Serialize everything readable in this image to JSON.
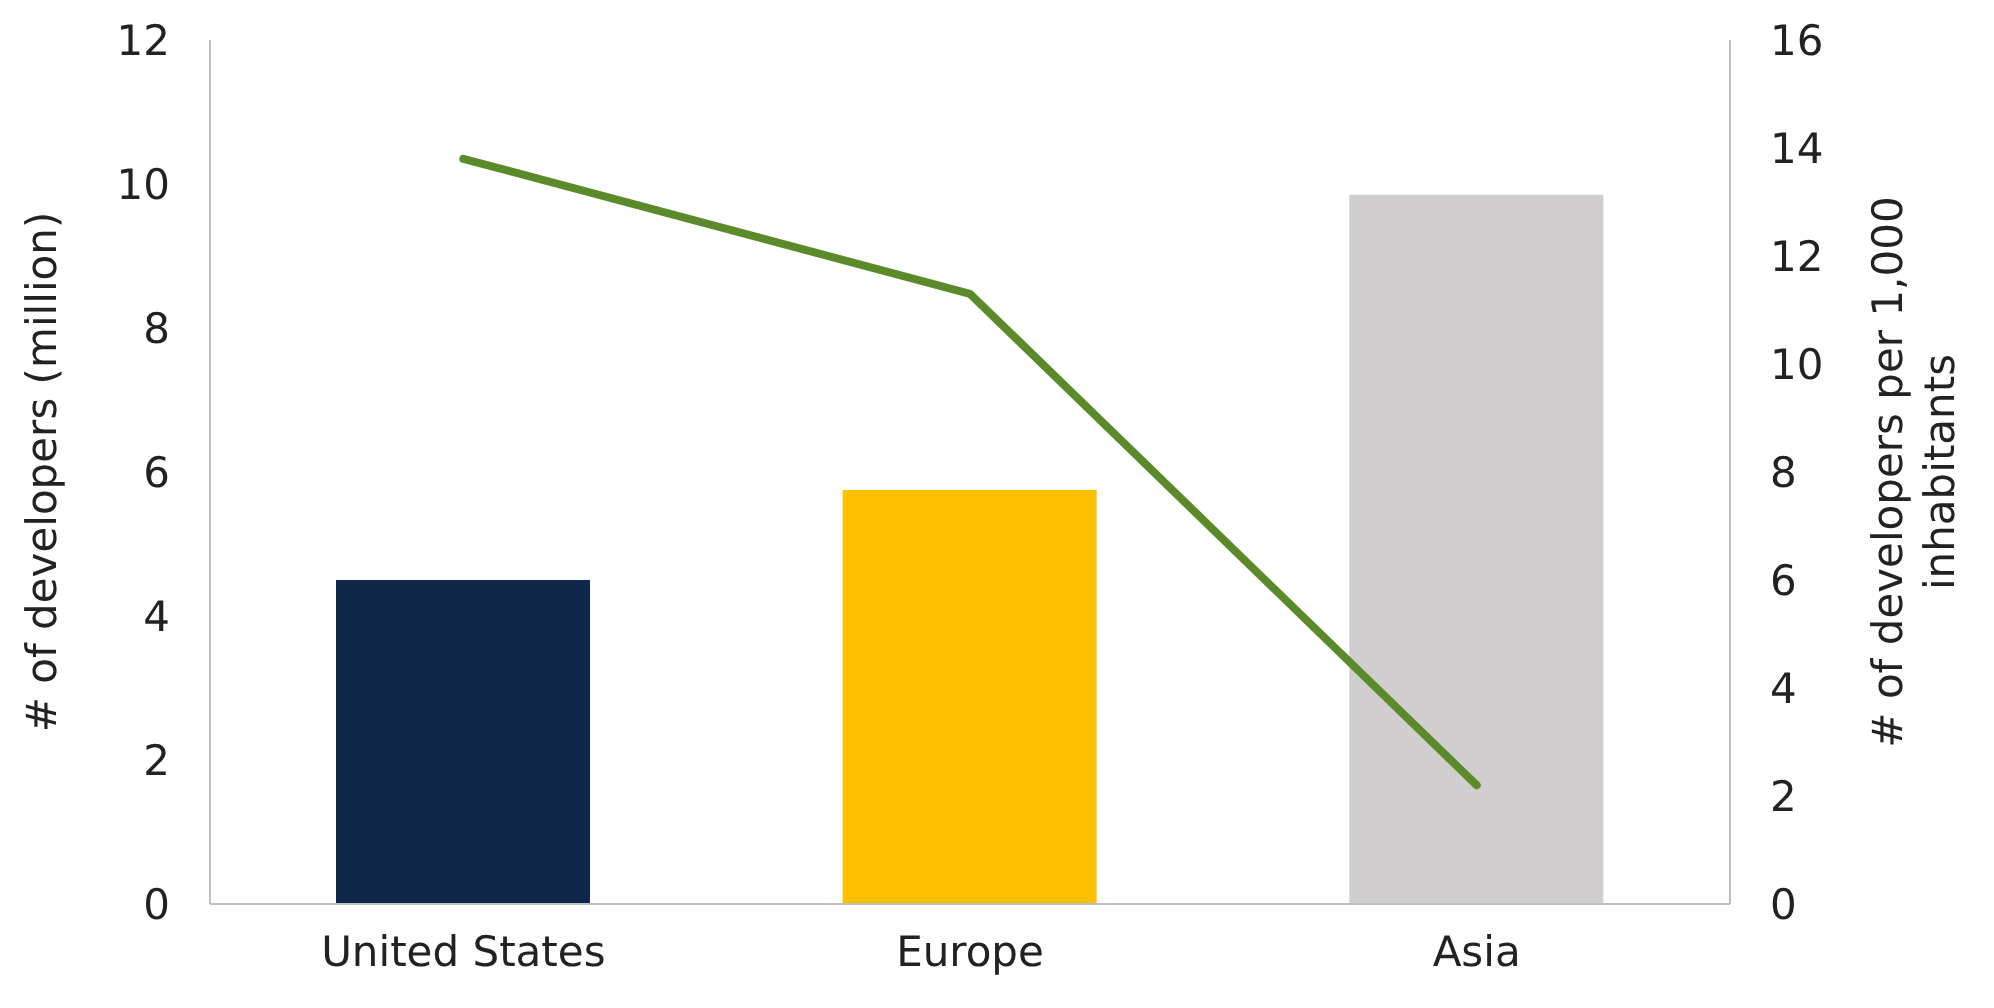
{
  "chart_data": {
    "type": "bar",
    "categories": [
      "United States",
      "Europe",
      "Asia"
    ],
    "ylabel": "# of developers (million)",
    "y2label": "# of developers per 1,000 inhabitants",
    "ylim": [
      0,
      12
    ],
    "yticks": [
      0,
      2,
      4,
      6,
      8,
      10,
      12
    ],
    "y2lim": [
      0,
      16
    ],
    "y2ticks": [
      0,
      2,
      4,
      6,
      8,
      10,
      12,
      14,
      16
    ],
    "series": [
      {
        "colors": [
          "#0f2849",
          "#ffc000",
          "#d0cece"
        ],
        "values": [
          4.5,
          5.75,
          9.85
        ]
      },
      {
        "type": "line",
        "axis": "y2",
        "color": "#5b8a2a",
        "values": [
          13.8,
          11.3,
          2.2
        ]
      }
    ]
  }
}
